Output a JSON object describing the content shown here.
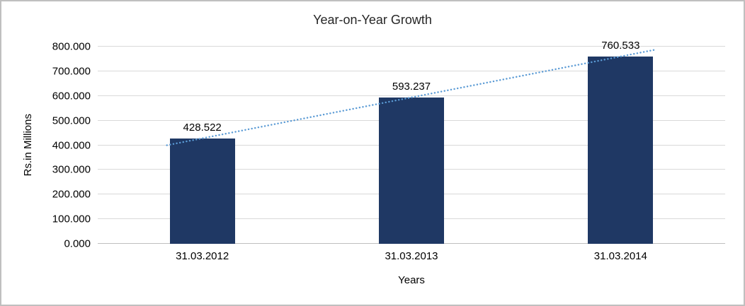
{
  "chart_data": {
    "type": "bar",
    "title": "Year-on-Year Growth",
    "xlabel": "Years",
    "ylabel": "Rs.in Millions",
    "categories": [
      "31.03.2012",
      "31.03.2013",
      "31.03.2014"
    ],
    "values": [
      428.522,
      593.237,
      760.533
    ],
    "value_labels": [
      "428.522",
      "593.237",
      "760.533"
    ],
    "ylim": [
      0,
      800
    ],
    "yticks": [
      0,
      100,
      200,
      300,
      400,
      500,
      600,
      700,
      800
    ],
    "ytick_labels": [
      "0.000",
      "100.000",
      "200.000",
      "300.000",
      "400.000",
      "500.000",
      "600.000",
      "700.000",
      "800.000"
    ],
    "grid": "horizontal",
    "legend": "none",
    "bar_color": "#1f3864",
    "trendline": {
      "type": "linear",
      "style": "dotted",
      "color": "#5b9bd5"
    },
    "colors": {
      "gridline": "#d9d9d9",
      "axis_line": "#bfbfbf",
      "text": "#000000",
      "title_text": "#262626",
      "frame_border": "#bfbfbf",
      "background": "#ffffff"
    }
  }
}
